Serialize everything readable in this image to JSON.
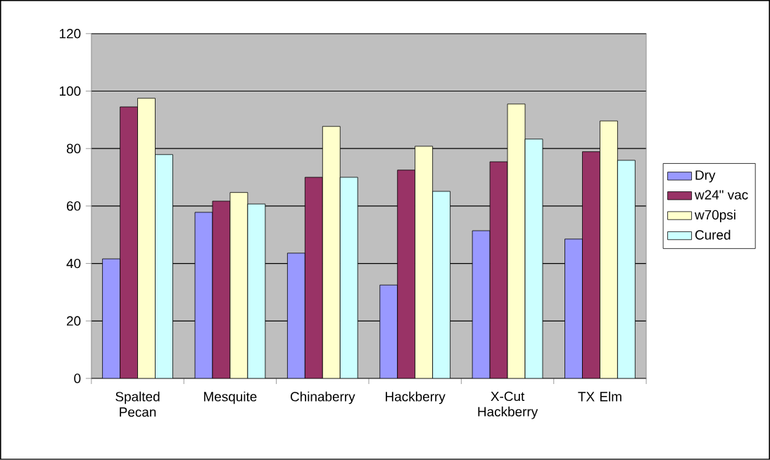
{
  "chart_data": {
    "type": "bar",
    "categories": [
      "Spalted Pecan",
      "Mesquite",
      "Chinaberry",
      "Hackberry",
      "X-Cut Hackberry",
      "TX Elm"
    ],
    "series": [
      {
        "name": "Dry",
        "color": "#9999ff",
        "values": [
          41.6,
          57.8,
          43.6,
          32.5,
          51.4,
          48.5
        ]
      },
      {
        "name": "w24\" vac",
        "color": "#993366",
        "values": [
          94.5,
          61.7,
          70,
          72.5,
          75.4,
          78.9
        ]
      },
      {
        "name": "w70psi",
        "color": "#ffffcc",
        "values": [
          97.5,
          64.7,
          87.7,
          80.8,
          95.5,
          89.6
        ]
      },
      {
        "name": "Cured",
        "color": "#ccffff",
        "values": [
          77.9,
          60.7,
          70,
          65.1,
          83.3,
          75.9
        ]
      }
    ],
    "ylim": [
      0,
      120
    ],
    "yticks": [
      0,
      20,
      40,
      60,
      80,
      100,
      120
    ],
    "grid": "y",
    "legend": "right"
  }
}
